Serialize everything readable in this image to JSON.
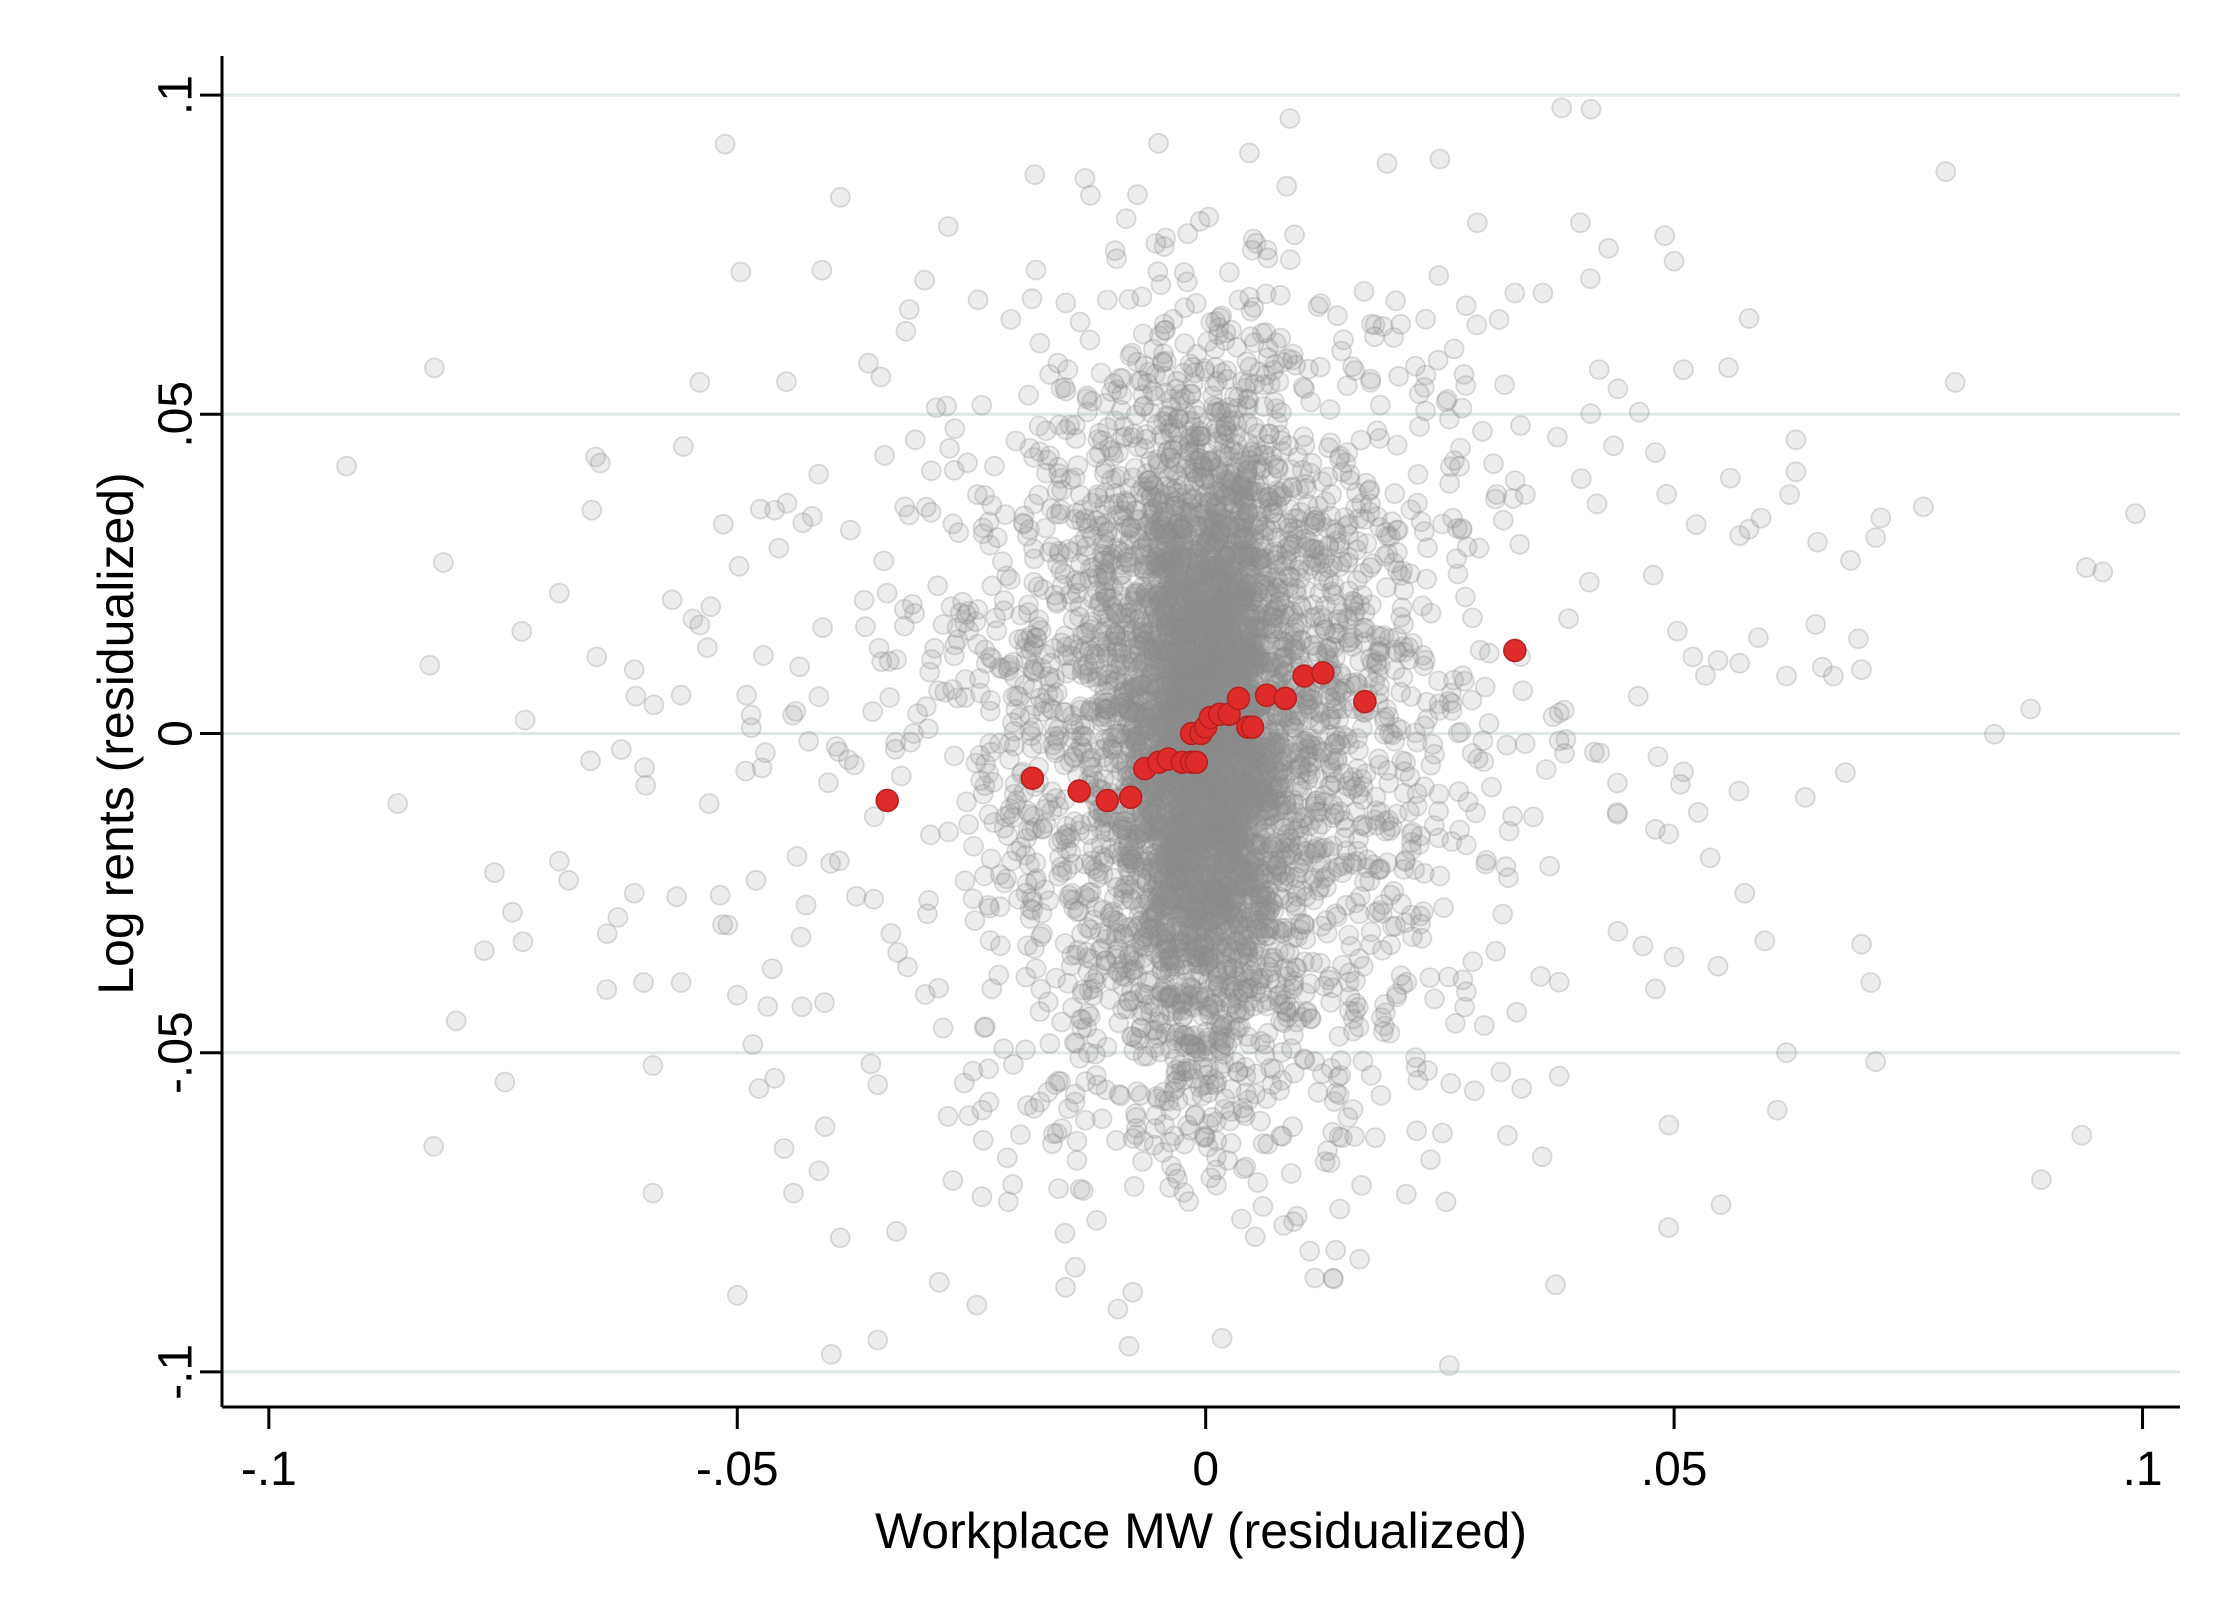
{
  "chart_data": {
    "type": "scatter",
    "xlabel": "Workplace MW (residualized)",
    "ylabel": "Log rents (residualized)",
    "xlim": [
      -0.105,
      0.104
    ],
    "ylim": [
      -0.1055,
      0.1055
    ],
    "x_ticks": [
      {
        "value": -0.1,
        "label": "-.1"
      },
      {
        "value": -0.05,
        "label": "-.05"
      },
      {
        "value": 0,
        "label": "0"
      },
      {
        "value": 0.05,
        "label": ".05"
      },
      {
        "value": 0.1,
        "label": ".1"
      }
    ],
    "y_ticks": [
      {
        "value": -0.1,
        "label": "-.1"
      },
      {
        "value": -0.05,
        "label": "-.05"
      },
      {
        "value": 0,
        "label": "0"
      },
      {
        "value": 0.05,
        "label": ".05"
      },
      {
        "value": 0.1,
        "label": ".1"
      }
    ],
    "grid": "horizontal",
    "legend": "none",
    "colors": {
      "background": "#ffffff",
      "grid": "#dfe8e5",
      "raw_points": "#8c8c8c",
      "binned_points": "#e02b2b",
      "binned_outline": "#b51f1f"
    },
    "series": [
      {
        "kind": "raw",
        "approx_count": 6000,
        "distribution": {
          "core": {
            "x_mean": 0,
            "x_sd": 0.004,
            "y_mean": 0,
            "y_sd": 0.022
          },
          "body": {
            "x_mean": 0,
            "x_sd": 0.012,
            "y_mean": 0,
            "y_sd": 0.032
          },
          "tails": {
            "x_mean": 0,
            "x_sd": 0.032,
            "y_mean": 0,
            "y_sd": 0.038
          }
        },
        "y_clip": [
          -0.099,
          0.099
        ],
        "points": [
          [
            -0.08,
            -0.045
          ],
          [
            -0.077,
            -0.034
          ],
          [
            -0.074,
            -0.028
          ],
          [
            -0.073,
            0.016
          ],
          [
            -0.069,
            0.022
          ],
          [
            -0.069,
            -0.02
          ],
          [
            -0.068,
            -0.023
          ],
          [
            -0.065,
            0.012
          ],
          [
            -0.061,
            -0.025
          ],
          [
            -0.061,
            0.01
          ],
          [
            -0.06,
            -0.039
          ],
          [
            -0.059,
            -0.052
          ],
          [
            -0.059,
            -0.072
          ],
          [
            -0.056,
            -0.039
          ],
          [
            -0.056,
            0.006
          ],
          [
            -0.054,
            0.055
          ],
          [
            -0.054,
            0.017
          ],
          [
            -0.053,
            -0.011
          ],
          [
            -0.051,
            -0.03
          ],
          [
            -0.05,
            -0.041
          ],
          [
            -0.05,
            -0.088
          ],
          [
            -0.049,
            0.006
          ],
          [
            -0.048,
            -0.023
          ],
          [
            -0.047,
            -0.003
          ],
          [
            -0.046,
            0.035
          ],
          [
            -0.046,
            -0.054
          ],
          [
            -0.045,
            -0.065
          ],
          [
            -0.044,
            -0.072
          ],
          [
            -0.043,
            0.033
          ],
          [
            -0.042,
            0.034
          ],
          [
            -0.039,
            0.084
          ],
          [
            -0.039,
            -0.079
          ],
          [
            -0.036,
            0.058
          ],
          [
            -0.035,
            -0.095
          ],
          [
            -0.035,
            -0.055
          ],
          [
            -0.034,
            0.022
          ],
          [
            -0.033,
            -0.078
          ],
          [
            -0.032,
            0.063
          ],
          [
            -0.031,
            0.046
          ],
          [
            -0.03,
            0.071
          ],
          [
            0.025,
            0.09
          ],
          [
            0.026,
            -0.099
          ],
          [
            0.029,
            0.08
          ],
          [
            0.033,
            0.069
          ],
          [
            0.036,
            0.069
          ],
          [
            0.038,
            0.098
          ],
          [
            0.04,
            0.08
          ],
          [
            0.042,
            0.057
          ],
          [
            0.043,
            0.076
          ],
          [
            0.044,
            -0.031
          ],
          [
            0.044,
            0.054
          ],
          [
            0.048,
            0.044
          ],
          [
            0.048,
            -0.015
          ],
          [
            0.048,
            -0.04
          ],
          [
            0.049,
            0.078
          ],
          [
            0.05,
            -0.035
          ],
          [
            0.05,
            0.074
          ],
          [
            0.051,
            0.057
          ],
          [
            0.051,
            -0.006
          ],
          [
            0.052,
            0.012
          ],
          [
            0.056,
            0.04
          ],
          [
            0.057,
            0.031
          ],
          [
            0.057,
            0.011
          ],
          [
            0.058,
            0.065
          ],
          [
            0.058,
            0.032
          ],
          [
            0.059,
            0.015
          ],
          [
            0.061,
            -0.059
          ],
          [
            0.062,
            -0.05
          ],
          [
            0.062,
            0.009
          ],
          [
            0.063,
            0.046
          ],
          [
            0.063,
            0.041
          ],
          [
            0.064,
            -0.01
          ],
          [
            0.067,
            0.009
          ],
          [
            0.07,
            0.01
          ],
          [
            0.07,
            -0.033
          ],
          [
            0.071,
            -0.039
          ],
          [
            0.079,
            0.088
          ],
          [
            0.08,
            0.055
          ],
          [
            0.094,
            0.026
          ]
        ]
      },
      {
        "kind": "binned",
        "points": [
          [
            -0.034,
            -0.0105
          ],
          [
            -0.0185,
            -0.007
          ],
          [
            -0.0135,
            -0.009
          ],
          [
            -0.0105,
            -0.0105
          ],
          [
            -0.008,
            -0.01
          ],
          [
            -0.0065,
            -0.0055
          ],
          [
            -0.005,
            -0.0045
          ],
          [
            -0.004,
            -0.004
          ],
          [
            -0.0025,
            -0.0045
          ],
          [
            -0.0015,
            -0.0045
          ],
          [
            -0.001,
            -0.0045
          ],
          [
            -0.0015,
            0.0
          ],
          [
            -0.0005,
            0.0
          ],
          [
            0.0,
            0.001
          ],
          [
            0.0005,
            0.0025
          ],
          [
            0.0015,
            0.003
          ],
          [
            0.0025,
            0.003
          ],
          [
            0.0035,
            0.0055
          ],
          [
            0.0045,
            0.001
          ],
          [
            0.005,
            0.001
          ],
          [
            0.0065,
            0.006
          ],
          [
            0.0085,
            0.0055
          ],
          [
            0.0105,
            0.009
          ],
          [
            0.0125,
            0.0095
          ],
          [
            0.017,
            0.005
          ],
          [
            0.033,
            0.013
          ]
        ]
      }
    ]
  }
}
